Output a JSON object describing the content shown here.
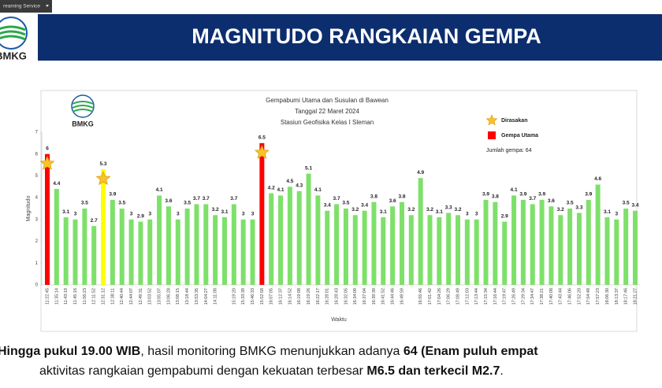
{
  "stream_tab": "reaming Service",
  "logo": "BMKG",
  "header": {
    "title": "MAGNITUDO RANGKAIAN GEMPA"
  },
  "chart_data": {
    "type": "bar",
    "logo": "BMKG",
    "title": [
      "Gempabumi Utama dan Susulan di Bawean",
      "Tanggal 22 Maret 2024",
      "Stasiun Geofisika Kelas I Sleman"
    ],
    "xlabel": "Waktu",
    "ylabel": "Magnitudo",
    "ylim": [
      0,
      7
    ],
    "yticks": [
      0,
      1,
      2,
      3,
      4,
      5,
      6,
      7
    ],
    "legend": [
      {
        "label": "Dirasakan",
        "marker": "star",
        "color": "#f7c22c"
      },
      {
        "label": "Gempa Utama",
        "marker": "square",
        "color": "#ff0000"
      }
    ],
    "note": "Jumlah gempa: 64",
    "felt": [
      0,
      6,
      23
    ],
    "categories": [
      "11:22:45",
      "11:35:14",
      "11:43:19",
      "11:45:16",
      "11:56:23",
      "12:11:52",
      "12:31:12",
      "12:38:11",
      "12:40:44",
      "12:44:07",
      "12:49:31",
      "13:03:52",
      "13:05:07",
      "13:06:28",
      "13:08:15",
      "13:18:44",
      "13:53:35",
      "14:04:27",
      "14:11:08",
      null,
      "15:19:20",
      "15:33:39",
      "15:46:33",
      "15:52:58",
      "16:07:05",
      "16:12:37",
      "16:14:52",
      "16:19:08",
      "16:19:26",
      "16:22:17",
      "16:28:01",
      "16:28:43",
      "16:32:05",
      "16:34:09",
      "16:37:04",
      "16:39:39",
      "16:41:52",
      "16:44:46",
      "16:49:59",
      null,
      "16:55:46",
      "17:01:42",
      "17:04:26",
      "17:06:29",
      "17:08:49",
      "17:12:03",
      "17:13:44",
      "17:15:34",
      "17:16:44",
      "17:19:47",
      "17:26:49",
      "17:29:34",
      "17:34:47",
      "17:38:21",
      "17:40:08",
      "17:43:44",
      "17:46:06",
      "17:52:20",
      "17:54:48",
      "17:57:23",
      "18:06:30",
      "18:13:37",
      "18:17:46",
      "18:21:27"
    ],
    "values": [
      6,
      4.4,
      3.1,
      3,
      3.5,
      2.7,
      5.3,
      3.9,
      3.5,
      3,
      2.9,
      3,
      4.1,
      3.6,
      3,
      3.5,
      3.7,
      3.7,
      3.2,
      3.1,
      3.7,
      3,
      3,
      6.5,
      4.2,
      4.1,
      4.5,
      4.3,
      5.1,
      4.1,
      3.4,
      3.7,
      3.5,
      3.2,
      3.4,
      3.8,
      3.1,
      3.6,
      3.8,
      3.2,
      4.9,
      3.2,
      3.1,
      3.3,
      3.2,
      3,
      3,
      3.9,
      3.8,
      2.9,
      4.1,
      3.9,
      3.7,
      3.9,
      3.6,
      3.2,
      3.5,
      3.3,
      3.9,
      4.6,
      3.1,
      3,
      3.5,
      3.4
    ],
    "colors": [
      "#ff0000",
      "#7ee06a",
      "#7ee06a",
      "#7ee06a",
      "#7ee06a",
      "#7ee06a",
      "#ffff00",
      "#7ee06a",
      "#7ee06a",
      "#7ee06a",
      "#7ee06a",
      "#7ee06a",
      "#7ee06a",
      "#7ee06a",
      "#7ee06a",
      "#7ee06a",
      "#7ee06a",
      "#7ee06a",
      "#7ee06a",
      "#7ee06a",
      "#7ee06a",
      "#7ee06a",
      "#7ee06a",
      "#ff0000",
      "#7ee06a",
      "#7ee06a",
      "#7ee06a",
      "#7ee06a",
      "#7ee06a",
      "#7ee06a",
      "#7ee06a",
      "#7ee06a",
      "#7ee06a",
      "#7ee06a",
      "#7ee06a",
      "#7ee06a",
      "#7ee06a",
      "#7ee06a",
      "#7ee06a",
      "#7ee06a",
      "#7ee06a",
      "#7ee06a",
      "#7ee06a",
      "#7ee06a",
      "#7ee06a",
      "#7ee06a",
      "#7ee06a",
      "#7ee06a",
      "#7ee06a",
      "#7ee06a",
      "#7ee06a",
      "#7ee06a",
      "#7ee06a",
      "#7ee06a",
      "#7ee06a",
      "#7ee06a",
      "#7ee06a",
      "#7ee06a",
      "#7ee06a",
      "#7ee06a",
      "#7ee06a",
      "#7ee06a",
      "#7ee06a",
      "#7ee06a"
    ]
  },
  "caption": {
    "lines": [
      [
        {
          "text": "Hingga pukul 19.00 WIB",
          "bold": true
        },
        {
          "text": ", hasil monitoring BMKG menunjukkan adanya ",
          "bold": false
        },
        {
          "text": "64 (Enam puluh empat",
          "bold": true
        }
      ],
      [
        {
          "text": "aktivitas rangkaian gempabumi dengan kekuatan terbesar ",
          "bold": false
        },
        {
          "text": "M6.5 dan terkecil M2.7",
          "bold": true
        },
        {
          "text": ".",
          "bold": false
        }
      ]
    ]
  }
}
